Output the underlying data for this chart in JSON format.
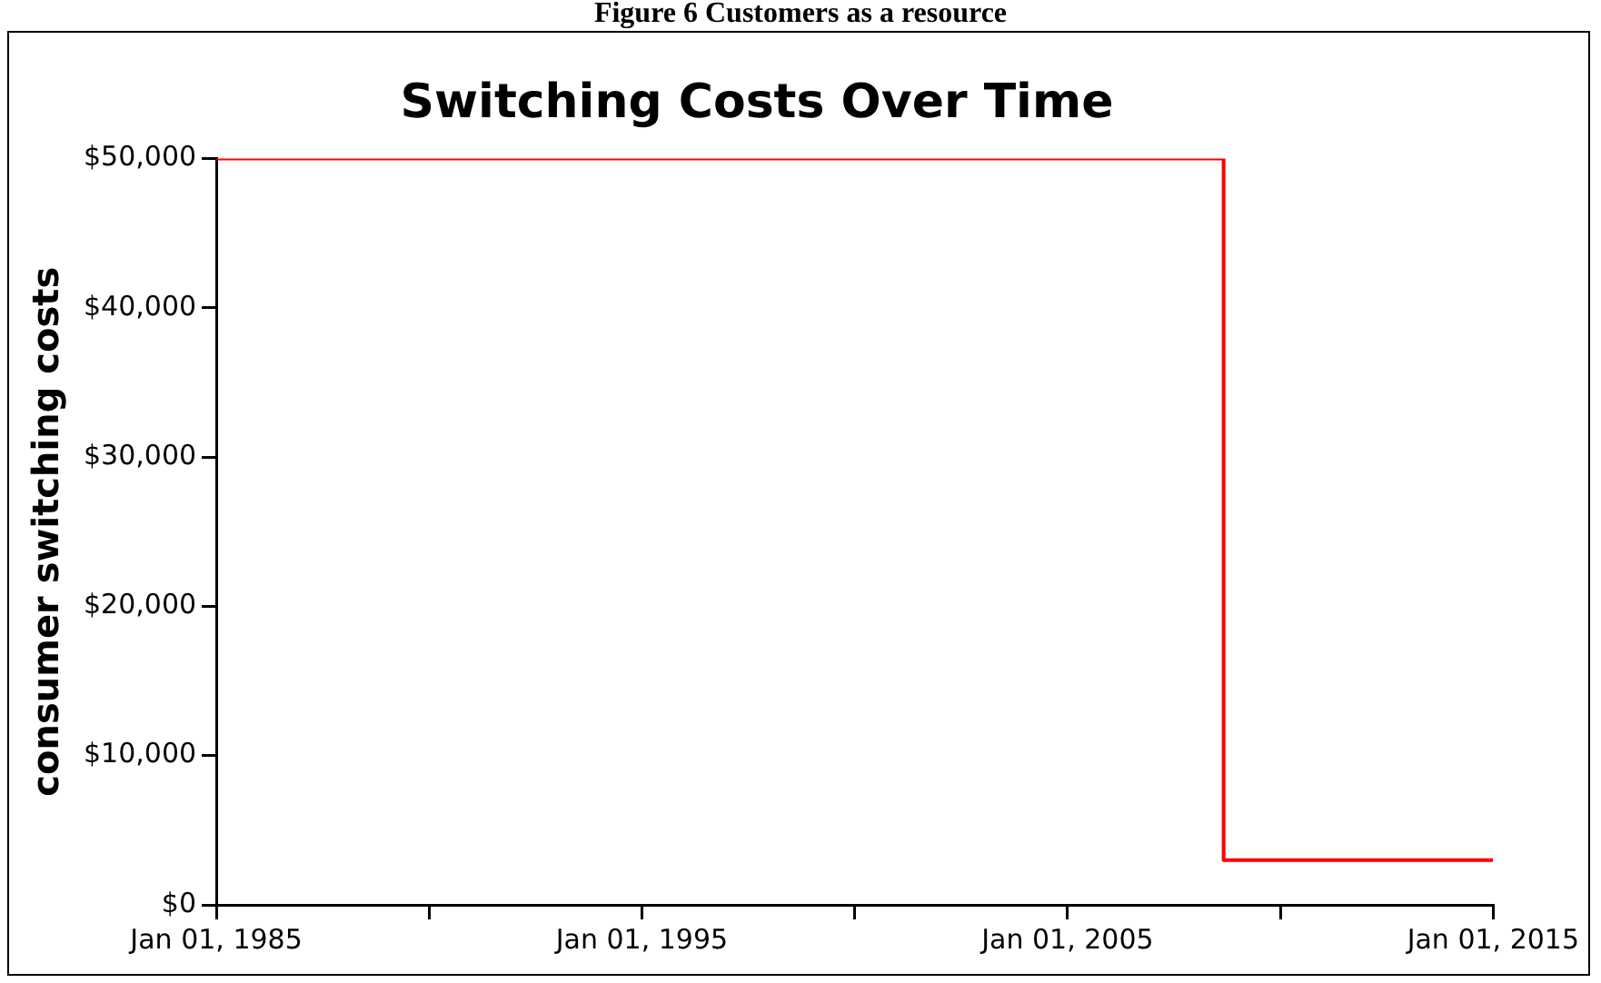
{
  "chart_data": {
    "type": "line",
    "title": "Switching Costs Over Time",
    "ylabel": "consumer switching costs",
    "annotations": [
      "Figure 6 Customers as a resource"
    ],
    "x": [
      "1985-01-01",
      "2008-09-01",
      "2008-09-01",
      "2015-01-01"
    ],
    "series": [
      {
        "color": "#ff0000",
        "values": [
          50000,
          50000,
          3000,
          3000
        ]
      }
    ],
    "xlim": [
      "1985-01-01",
      "2015-01-01"
    ],
    "xticks": [
      {
        "value": "1985-01-01",
        "label": "Jan 01, 1985"
      },
      {
        "value": "1990-01-01",
        "label": null
      },
      {
        "value": "1995-01-01",
        "label": "Jan 01, 1995"
      },
      {
        "value": "2000-01-01",
        "label": null
      },
      {
        "value": "2005-01-01",
        "label": "Jan 01, 2005"
      },
      {
        "value": "2010-01-01",
        "label": null
      },
      {
        "value": "2015-01-01",
        "label": "Jan 01, 2015"
      }
    ],
    "ylim": [
      0,
      50000
    ],
    "yticks": [
      {
        "value": 0,
        "label": "$0"
      },
      {
        "value": 10000,
        "label": "$10,000"
      },
      {
        "value": 20000,
        "label": "$20,000"
      },
      {
        "value": 30000,
        "label": "$30,000"
      },
      {
        "value": 40000,
        "label": "$40,000"
      },
      {
        "value": 50000,
        "label": "$50,000"
      }
    ],
    "grid": false,
    "legend": false,
    "marker": "none",
    "line_style": "solid"
  }
}
